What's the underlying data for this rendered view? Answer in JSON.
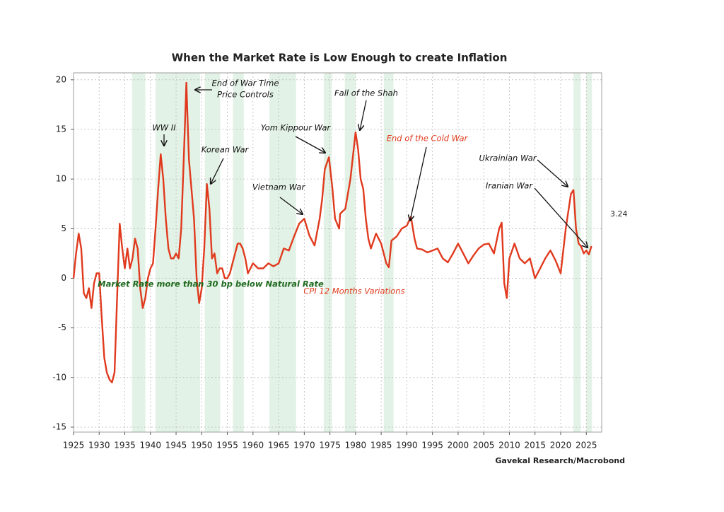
{
  "chart_data": {
    "type": "line",
    "title": "When the Market Rate is Low Enough to create Inflation",
    "source": "Gavekal Research/Macrobond",
    "xlim": [
      1925,
      2028
    ],
    "ylim": [
      -15.5,
      20.7
    ],
    "xticks": [
      1925,
      1930,
      1935,
      1940,
      1945,
      1950,
      1955,
      1960,
      1965,
      1970,
      1975,
      1980,
      1985,
      1990,
      1995,
      2000,
      2005,
      2010,
      2015,
      2020,
      2025
    ],
    "yticks": [
      20,
      15,
      10,
      5,
      0,
      -5,
      -10,
      -15
    ],
    "grid": true,
    "shading": {
      "name": "Market Rate more than 30 bp below Natural Rate",
      "color": "#dcefe0",
      "periods": [
        [
          1936.4,
          1939.0
        ],
        [
          1941.0,
          1949.7
        ],
        [
          1950.6,
          1953.6
        ],
        [
          1956.1,
          1958.2
        ],
        [
          1963.2,
          1968.4
        ],
        [
          1973.8,
          1975.4
        ],
        [
          1977.9,
          1980.0
        ],
        [
          1985.5,
          1987.4
        ],
        [
          2022.5,
          2023.9
        ],
        [
          2025.0,
          2026.1
        ]
      ]
    },
    "x": [
      1925,
      1925.5,
      1926,
      1926.5,
      1927,
      1927.5,
      1928,
      1928.5,
      1929,
      1929.5,
      1930,
      1930.5,
      1931,
      1931.5,
      1932,
      1932.5,
      1933,
      1933.5,
      1934,
      1934.5,
      1935,
      1935.5,
      1936,
      1936.5,
      1937,
      1937.5,
      1938,
      1938.5,
      1939,
      1939.5,
      1940,
      1940.5,
      1941,
      1941.5,
      1942,
      1942.5,
      1943,
      1943.5,
      1944,
      1944.5,
      1945,
      1945.5,
      1946,
      1946.5,
      1947,
      1947.5,
      1948,
      1948.5,
      1949,
      1949.5,
      1950,
      1950.5,
      1951,
      1951.5,
      1952,
      1952.5,
      1953,
      1953.5,
      1954,
      1954.5,
      1955,
      1955.5,
      1956,
      1956.5,
      1957,
      1957.5,
      1958,
      1958.5,
      1959,
      1959.5,
      1960,
      1961,
      1962,
      1963,
      1964,
      1965,
      1966,
      1967,
      1968,
      1969,
      1970,
      1971,
      1972,
      1973,
      1973.5,
      1974,
      1974.8,
      1975.5,
      1976,
      1976.8,
      1977,
      1978,
      1979,
      1980,
      1980.5,
      1981,
      1981.5,
      1982,
      1982.5,
      1983,
      1984,
      1985,
      1986,
      1986.5,
      1987,
      1988,
      1989,
      1990,
      1990.8,
      1991.5,
      1992,
      1993,
      1994,
      1995,
      1996,
      1997,
      1998,
      1999,
      2000,
      2001,
      2002,
      2003,
      2004,
      2005,
      2006,
      2007,
      2008,
      2008.5,
      2009,
      2009.5,
      2010,
      2011,
      2012,
      2013,
      2014,
      2015,
      2016,
      2017,
      2018,
      2019,
      2020,
      2021,
      2022,
      2022.5,
      2023,
      2023.5,
      2024,
      2024.5,
      2025,
      2025.5,
      2026
    ],
    "series": [
      {
        "name": "CPI 12 Months Variations",
        "color": "#e03a1e",
        "values": [
          0,
          2.5,
          4.5,
          3,
          -1.5,
          -2,
          -1,
          -3,
          -0.5,
          0.5,
          0.5,
          -4,
          -8,
          -9.5,
          -10.2,
          -10.5,
          -9.5,
          -2,
          5.5,
          3,
          1,
          3,
          1,
          2,
          4,
          3,
          -1,
          -3,
          -2,
          0,
          1,
          1.5,
          5,
          9,
          12.5,
          10,
          6,
          3,
          2,
          2,
          2.5,
          2,
          5,
          12,
          19.7,
          12,
          9,
          6,
          0,
          -2.5,
          -1,
          3,
          9.5,
          7,
          2,
          2.5,
          0.5,
          1,
          1,
          0,
          0,
          0.5,
          1.5,
          2.5,
          3.5,
          3.5,
          3,
          2,
          0.5,
          1,
          1.5,
          1,
          1,
          1.5,
          1.2,
          1.5,
          3,
          2.8,
          4.2,
          5.5,
          6,
          4.3,
          3.3,
          6,
          8,
          11,
          12.2,
          9,
          6,
          5,
          6.5,
          7,
          10,
          14.7,
          13,
          10,
          9,
          6,
          4,
          3,
          4.5,
          3.5,
          1.5,
          1.1,
          3.8,
          4.2,
          5,
          5.3,
          6.2,
          4,
          3,
          2.9,
          2.6,
          2.8,
          3,
          2,
          1.6,
          2.5,
          3.5,
          2.5,
          1.5,
          2.3,
          3,
          3.4,
          3.5,
          2.5,
          5,
          5.6,
          -0.5,
          -2,
          2,
          3.5,
          2,
          1.5,
          2,
          0,
          1,
          2,
          2.8,
          1.8,
          0.5,
          5,
          8.5,
          8.9,
          5,
          3.5,
          3.2,
          2.5,
          2.8,
          2.4,
          3.24
        ]
      }
    ],
    "last_value_color": "#6aa5d8",
    "annotations": [
      {
        "lines": [
          "End of War Time",
          "Price Controls"
        ],
        "color": "#111111"
      },
      {
        "lines": [
          "WW II"
        ],
        "color": "#111111"
      },
      {
        "lines": [
          "Korean War"
        ],
        "color": "#111111"
      },
      {
        "lines": [
          "Yom Kippour War"
        ],
        "color": "#111111"
      },
      {
        "lines": [
          "Vietnam War"
        ],
        "color": "#111111"
      },
      {
        "lines": [
          "Fall of the Shah"
        ],
        "color": "#111111"
      },
      {
        "lines": [
          "End of the Cold War"
        ],
        "color": "#e03a1e"
      },
      {
        "lines": [
          "Ukrainian War"
        ],
        "color": "#111111"
      },
      {
        "lines": [
          "Iranian War"
        ],
        "color": "#111111"
      }
    ]
  }
}
